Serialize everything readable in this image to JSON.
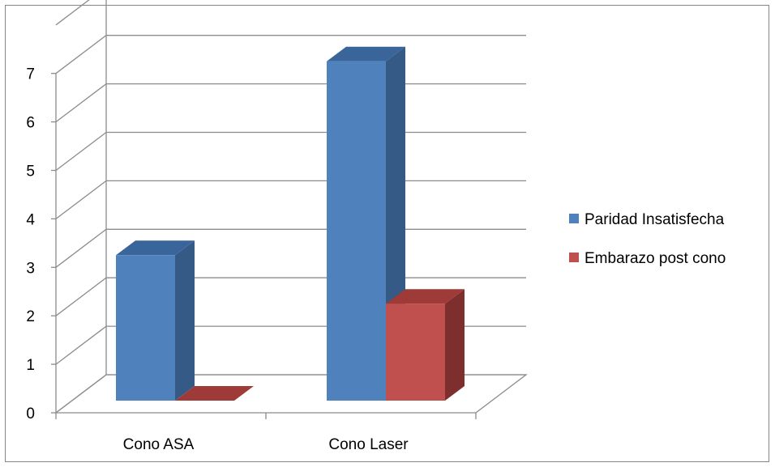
{
  "chart_data": {
    "type": "bar",
    "style": "3d-clustered-column",
    "categories": [
      "Cono ASA",
      "Cono Laser"
    ],
    "series": [
      {
        "name": "Paridad Insatisfecha",
        "values": [
          3,
          7
        ],
        "color": "#4F81BD",
        "side_color": "#355A86",
        "top_color": "#3A659B"
      },
      {
        "name": "Embarazo post cono",
        "values": [
          0,
          2
        ],
        "color": "#C0504D",
        "side_color": "#7D2E2D",
        "top_color": "#9E3B39"
      }
    ],
    "ylim": [
      0,
      7
    ],
    "y_ticks": [
      "0",
      "1",
      "2",
      "3",
      "4",
      "5",
      "6",
      "7"
    ],
    "grid": true,
    "legend_position": "right",
    "title": "",
    "xlabel": "",
    "ylabel": ""
  }
}
